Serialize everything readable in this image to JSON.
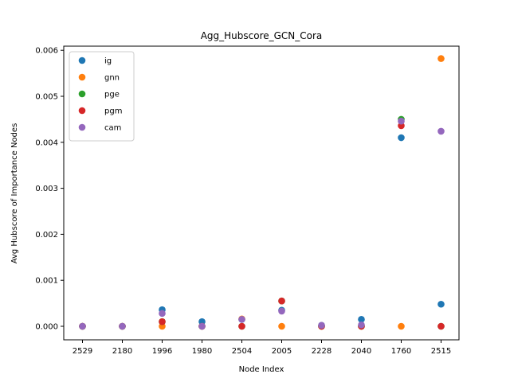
{
  "chart_data": {
    "type": "scatter",
    "title": "Agg_Hubscore_GCN_Cora",
    "xlabel": "Node Index",
    "ylabel": "Avg Hubscore of Importance Nodes",
    "categories": [
      "2529",
      "2180",
      "1996",
      "1980",
      "2504",
      "2005",
      "2228",
      "2040",
      "1760",
      "2515"
    ],
    "yticks": [
      "0.000",
      "0.001",
      "0.002",
      "0.003",
      "0.004",
      "0.005",
      "0.006"
    ],
    "ylim": [
      -0.00025,
      0.0062
    ],
    "grid": false,
    "legend_position": "top-left",
    "series": [
      {
        "name": "ig",
        "color": "#1f77b4",
        "values": [
          0.0,
          0.0,
          0.00036,
          0.0001,
          0.00015,
          0.00035,
          2e-05,
          0.00015,
          0.0041,
          0.00048
        ]
      },
      {
        "name": "gnn",
        "color": "#ff7f0e",
        "values": [
          0.0,
          0.0,
          0.0,
          0.0,
          0.00016,
          0.0,
          0.0,
          0.0,
          0.0,
          0.00582
        ]
      },
      {
        "name": "pge",
        "color": "#2ca02c",
        "values": [
          0.0,
          0.0,
          0.0001,
          0.0,
          0.0,
          0.00055,
          0.0,
          0.0,
          0.0045,
          0.0
        ]
      },
      {
        "name": "pgm",
        "color": "#d62728",
        "values": [
          0.0,
          0.0,
          0.0001,
          0.0,
          0.0,
          0.00055,
          0.0,
          0.0,
          0.00436,
          0.0
        ]
      },
      {
        "name": "cam",
        "color": "#9467bd",
        "values": [
          0.0,
          0.0,
          0.00028,
          0.0,
          0.00015,
          0.00033,
          2e-05,
          3e-05,
          0.00446,
          0.00424
        ]
      }
    ]
  }
}
